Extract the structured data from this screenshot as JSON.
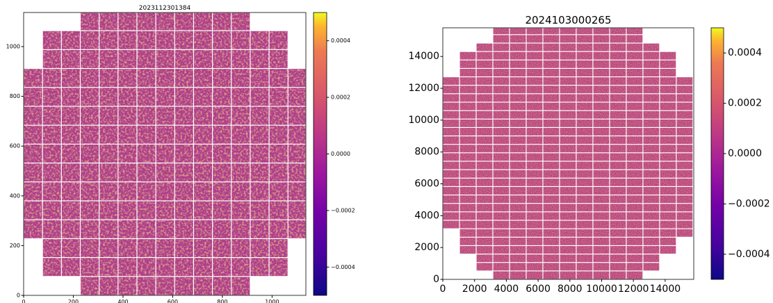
{
  "chart_data": [
    {
      "type": "image",
      "title": "2023112301384",
      "colormap": "plasma",
      "xlim": [
        0,
        1136
      ],
      "ylim": [
        0,
        1137
      ],
      "xticks": [
        0,
        200,
        400,
        600,
        800,
        1000
      ],
      "yticks": [
        0,
        200,
        400,
        600,
        800,
        1000
      ],
      "clim": [
        -0.0005,
        0.0005
      ],
      "cticks": [
        {
          "value": -0.0004,
          "label": "−0.0004"
        },
        {
          "value": -0.0002,
          "label": "−0.0002"
        },
        {
          "value": 0,
          "label": "0.0000"
        },
        0.0002,
        0.0004
      ]
    },
    {
      "type": "image",
      "title": "2024103000265",
      "colormap": "plasma",
      "xlim": [
        0,
        15800
      ],
      "ylim": [
        0,
        15800
      ],
      "xticks": [
        0,
        2000,
        4000,
        6000,
        8000,
        10000,
        12000,
        14000
      ],
      "yticks": [
        0,
        2000,
        4000,
        6000,
        8000,
        10000,
        12000,
        14000
      ],
      "clim": [
        -0.0005,
        0.0005
      ],
      "cticks": [
        {
          "value": -0.0004,
          "label": "−0.0004"
        },
        {
          "value": -0.0002,
          "label": "−0.0002"
        },
        {
          "value": 0,
          "label": "0.0000"
        },
        0.0002,
        0.0004
      ]
    }
  ]
}
